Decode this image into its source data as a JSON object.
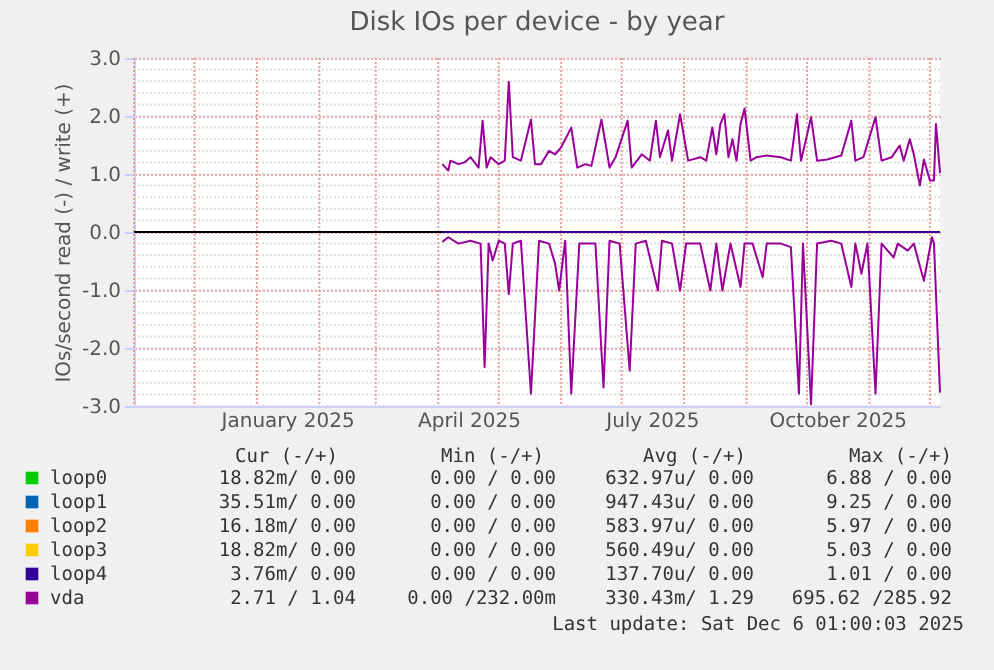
{
  "chart_data": {
    "type": "line",
    "title": "Disk IOs per device - by year",
    "ylabel": "IOs/second read (-) / write (+)",
    "xlim": [
      "2024-11-01",
      "2025-12-06"
    ],
    "xticks": [
      {
        "value": "2025-01-16",
        "label": "January 2025"
      },
      {
        "value": "2025-04-16",
        "label": "April 2025"
      },
      {
        "value": "2025-07-16",
        "label": "July 2025"
      },
      {
        "value": "2025-10-16",
        "label": "October 2025"
      }
    ],
    "ylim": [
      -3,
      3
    ],
    "yticks": [
      {
        "value": -3,
        "label": "-3.0"
      },
      {
        "value": -2,
        "label": "-2.0"
      },
      {
        "value": -1,
        "label": "-1.0"
      },
      {
        "value": 0,
        "label": "0.0"
      },
      {
        "value": 1,
        "label": "1.0"
      },
      {
        "value": 2,
        "label": "2.0"
      },
      {
        "value": 3,
        "label": "3.0"
      }
    ],
    "grid": true,
    "legend": "bottom",
    "ref_lines": [
      {
        "axis": "y",
        "value": 0,
        "color": "#000000"
      }
    ],
    "series": [
      {
        "name": "loop0",
        "color": "#00cc00"
      },
      {
        "name": "loop1",
        "color": "#0066b3"
      },
      {
        "name": "loop2",
        "color": "#ff8000"
      },
      {
        "name": "loop3",
        "color": "#ffcc00"
      },
      {
        "name": "loop4",
        "color": "#330099",
        "x": [
          "2025-04-03",
          "2025-12-06"
        ],
        "values": [
          0,
          0
        ]
      },
      {
        "name": "vda",
        "color": "#990099",
        "x": [
          "2025-04-03",
          "2025-04-06",
          "2025-04-07",
          "2025-04-11",
          "2025-04-14",
          "2025-04-17",
          "2025-04-21",
          "2025-04-23",
          "2025-04-25",
          "2025-04-27",
          "2025-05-01",
          "2025-05-04",
          "2025-05-06",
          "2025-05-08",
          "2025-05-12",
          "2025-05-17",
          "2025-05-19",
          "2025-05-22",
          "2025-05-26",
          "2025-05-29",
          "2025-06-01",
          "2025-06-06",
          "2025-06-09",
          "2025-06-13",
          "2025-06-16",
          "2025-06-21",
          "2025-06-25",
          "2025-06-28",
          "2025-07-04",
          "2025-07-06",
          "2025-07-11",
          "2025-07-15",
          "2025-07-18",
          "2025-07-20",
          "2025-07-24",
          "2025-07-26",
          "2025-07-30",
          "2025-08-03",
          "2025-08-09",
          "2025-08-12",
          "2025-08-15",
          "2025-08-17",
          "2025-08-19",
          "2025-08-21",
          "2025-08-23",
          "2025-08-25",
          "2025-08-27",
          "2025-08-29",
          "2025-08-31",
          "2025-09-03",
          "2025-09-06",
          "2025-09-11",
          "2025-09-18",
          "2025-09-23",
          "2025-09-26",
          "2025-09-28",
          "2025-09-30",
          "2025-10-03",
          "2025-10-06",
          "2025-10-11",
          "2025-10-18",
          "2025-10-23",
          "2025-10-25",
          "2025-10-29",
          "2025-11-04",
          "2025-11-07",
          "2025-11-12",
          "2025-11-16",
          "2025-11-18",
          "2025-11-21",
          "2025-11-23",
          "2025-11-26",
          "2025-11-28",
          "2025-12-01",
          "2025-12-03",
          "2025-12-04",
          "2025-12-06"
        ],
        "values": [
          1.17,
          1.06,
          1.23,
          1.17,
          1.2,
          1.29,
          1.11,
          1.92,
          1.11,
          1.29,
          1.17,
          1.23,
          2.59,
          1.29,
          1.23,
          1.94,
          1.17,
          1.17,
          1.4,
          1.34,
          1.46,
          1.8,
          1.11,
          1.17,
          1.14,
          1.94,
          1.11,
          1.29,
          1.92,
          1.11,
          1.34,
          1.23,
          1.92,
          1.29,
          1.75,
          1.23,
          2.03,
          1.23,
          1.29,
          1.23,
          1.8,
          1.34,
          1.86,
          2.03,
          1.29,
          1.6,
          1.23,
          1.86,
          2.13,
          1.23,
          1.29,
          1.32,
          1.29,
          1.23,
          2.03,
          1.23,
          1.52,
          1.98,
          1.23,
          1.25,
          1.32,
          1.92,
          1.23,
          1.29,
          1.98,
          1.23,
          1.29,
          1.49,
          1.23,
          1.6,
          1.34,
          0.8,
          1.25,
          0.89,
          0.89,
          1.86,
          1.02
        ]
      },
      {
        "color": "#990099",
        "x": [
          "2025-04-03",
          "2025-04-06",
          "2025-04-11",
          "2025-04-17",
          "2025-04-22",
          "2025-04-24",
          "2025-04-26",
          "2025-04-28",
          "2025-05-01",
          "2025-05-04",
          "2025-05-06",
          "2025-05-08",
          "2025-05-12",
          "2025-05-17",
          "2025-05-21",
          "2025-05-26",
          "2025-05-29",
          "2025-05-31",
          "2025-06-03",
          "2025-06-06",
          "2025-06-10",
          "2025-06-15",
          "2025-06-18",
          "2025-06-22",
          "2025-06-25",
          "2025-06-30",
          "2025-07-05",
          "2025-07-08",
          "2025-07-13",
          "2025-07-19",
          "2025-07-21",
          "2025-07-26",
          "2025-07-30",
          "2025-08-02",
          "2025-08-09",
          "2025-08-14",
          "2025-08-17",
          "2025-08-20",
          "2025-08-24",
          "2025-08-29",
          "2025-08-31",
          "2025-09-04",
          "2025-09-09",
          "2025-09-11",
          "2025-09-18",
          "2025-09-23",
          "2025-09-27",
          "2025-09-29",
          "2025-10-03",
          "2025-10-06",
          "2025-10-13",
          "2025-10-18",
          "2025-10-23",
          "2025-10-25",
          "2025-10-28",
          "2025-10-31",
          "2025-11-04",
          "2025-11-07",
          "2025-11-13",
          "2025-11-15",
          "2025-11-20",
          "2025-11-23",
          "2025-11-28",
          "2025-12-02",
          "2025-12-03",
          "2025-12-06"
        ],
        "values": [
          -0.17,
          -0.09,
          -0.2,
          -0.15,
          -0.2,
          -2.33,
          -0.2,
          -0.49,
          -0.15,
          -0.2,
          -1.07,
          -0.2,
          -0.15,
          -2.79,
          -0.15,
          -0.2,
          -0.55,
          -1.01,
          -0.15,
          -2.79,
          -0.2,
          -0.2,
          -0.2,
          -2.68,
          -0.15,
          -0.2,
          -2.39,
          -0.2,
          -0.15,
          -1.01,
          -0.15,
          -0.2,
          -1.01,
          -0.2,
          -0.2,
          -1.01,
          -0.2,
          -1.01,
          -0.2,
          -0.95,
          -0.2,
          -0.2,
          -0.78,
          -0.2,
          -0.2,
          -0.26,
          -2.79,
          -0.2,
          -2.97,
          -0.2,
          -0.15,
          -0.2,
          -0.95,
          -0.2,
          -0.72,
          -0.2,
          -2.79,
          -0.2,
          -0.44,
          -0.2,
          -0.32,
          -0.2,
          -0.84,
          -0.09,
          -0.2,
          -2.77
        ]
      }
    ],
    "annotations": [
      "Cur (-/+)",
      "Min (-/+)",
      "Avg (-/+)",
      "Max (-/+)",
      "18.82m/  0.00",
      "0.00 /  0.00",
      "632.97u/  0.00",
      "6.88 /  0.00",
      "35.51m/  0.00",
      "0.00 /  0.00",
      "947.43u/  0.00",
      "9.25 /  0.00",
      "16.18m/  0.00",
      "0.00 /  0.00",
      "583.97u/  0.00",
      "5.97 /  0.00",
      "18.82m/  0.00",
      "0.00 /  0.00",
      "560.49u/  0.00",
      "5.03 /  0.00",
      "3.76m/  0.00",
      "0.00 /  0.00",
      "137.70u/  0.00",
      "1.01 /  0.00",
      "2.71 /  1.04",
      "0.00 /232.00m",
      "330.43m/  1.29",
      "695.62 /285.92",
      "Last update: Sat Dec  6 01:00:03 2025"
    ]
  }
}
